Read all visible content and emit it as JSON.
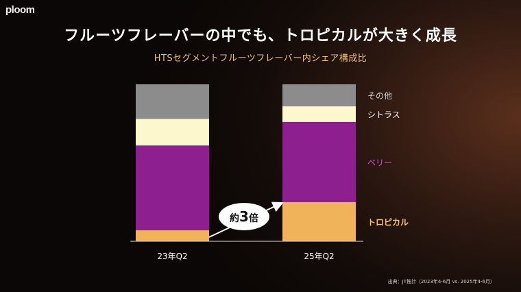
{
  "header": {
    "logo": "ploom",
    "title": "フルーツフレーバーの中でも、トロピカルが大きく成長",
    "subtitle": "HTSセグメントフルーツフレーバー内シェア構成比"
  },
  "chart_data": {
    "type": "bar",
    "stacked": true,
    "normalized_percent": true,
    "categories": [
      "23年Q2",
      "25年Q2"
    ],
    "series": [
      {
        "name": "トロピカル",
        "values": [
          7,
          25
        ],
        "color": "#f0b35a",
        "label_color": "#f5c066"
      },
      {
        "name": "ベリー",
        "values": [
          54,
          51
        ],
        "color": "#8e1f8e",
        "label_color": "#d64fd6"
      },
      {
        "name": "シトラス",
        "values": [
          17,
          10
        ],
        "color": "#fcf7cc",
        "label_color": "#ffffff"
      },
      {
        "name": "その他",
        "values": [
          22,
          14
        ],
        "color": "#8c8c8c",
        "label_color": "#cfcfcf"
      }
    ],
    "ylim": [
      0,
      100
    ],
    "grid": false,
    "legend": "right",
    "annotation": {
      "prefix": "約",
      "value": "3",
      "suffix": "倍"
    }
  },
  "footer": {
    "source": "出典：JT推計（2023年4-6月 vs. 2025年4-6月）"
  }
}
